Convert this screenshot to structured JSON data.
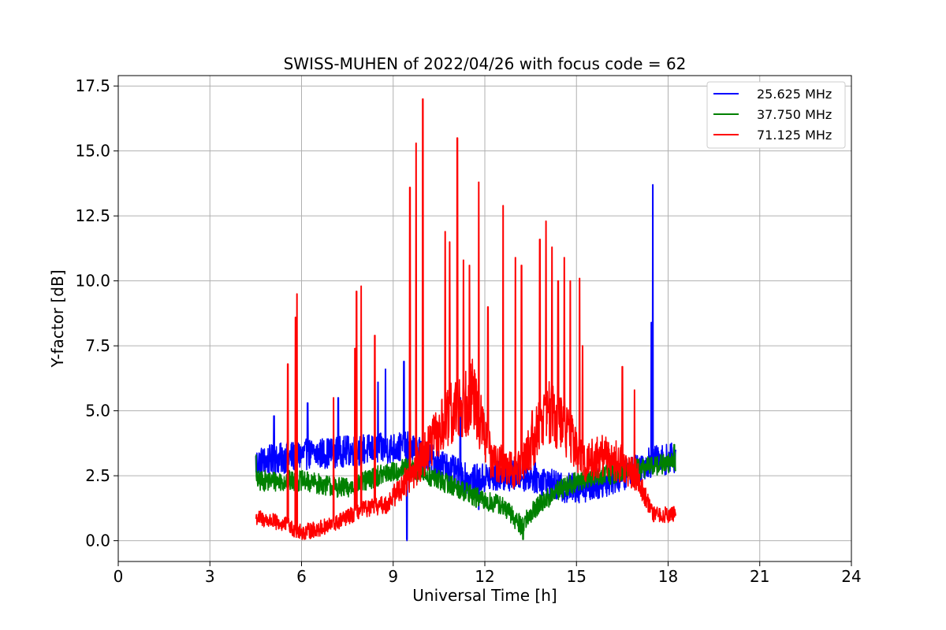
{
  "chart_data": {
    "type": "line",
    "title": "SWISS-MUHEN of 2022/04/26 with focus code = 62",
    "xlabel": "Universal Time [h]",
    "ylabel": "Y-factor [dB]",
    "xlim": [
      0,
      24
    ],
    "ylim": [
      -0.8,
      17.9
    ],
    "xticks": [
      0,
      3,
      6,
      9,
      12,
      15,
      18,
      21,
      24
    ],
    "xtick_labels": [
      "0",
      "3",
      "6",
      "9",
      "12",
      "15",
      "18",
      "21",
      "24"
    ],
    "yticks": [
      0,
      2.5,
      5,
      7.5,
      10,
      12.5,
      15,
      17.5
    ],
    "ytick_labels": [
      "0.0",
      "2.5",
      "5.0",
      "7.5",
      "10.0",
      "12.5",
      "15.0",
      "17.5"
    ],
    "grid": true,
    "legend_position": "top-right",
    "series": [
      {
        "name": "25.625 MHz",
        "color": "#0000ff",
        "x_start": 4.5,
        "x_end": 18.25,
        "baseline": [
          [
            4.5,
            3.0
          ],
          [
            6.0,
            3.3
          ],
          [
            8.0,
            3.5
          ],
          [
            9.5,
            3.6
          ],
          [
            10.5,
            3.0
          ],
          [
            11.5,
            2.3
          ],
          [
            12.5,
            2.5
          ],
          [
            13.5,
            2.5
          ],
          [
            14.5,
            2.0
          ],
          [
            15.5,
            2.1
          ],
          [
            16.5,
            2.5
          ],
          [
            17.3,
            3.0
          ],
          [
            18.25,
            3.2
          ]
        ],
        "noise": 0.6,
        "peaks": [
          [
            5.1,
            4.8
          ],
          [
            6.2,
            5.3
          ],
          [
            7.2,
            5.5
          ],
          [
            8.5,
            6.1
          ],
          [
            8.75,
            6.6
          ],
          [
            9.35,
            6.9
          ],
          [
            9.45,
            0.0
          ],
          [
            11.2,
            5.5
          ],
          [
            11.8,
            1.2
          ],
          [
            17.5,
            13.7
          ],
          [
            17.45,
            8.4
          ]
        ]
      },
      {
        "name": "37.750 MHz",
        "color": "#008000",
        "x_start": 4.5,
        "x_end": 18.25,
        "baseline": [
          [
            4.5,
            2.3
          ],
          [
            6.0,
            2.3
          ],
          [
            7.5,
            2.0
          ],
          [
            8.5,
            2.5
          ],
          [
            9.5,
            2.8
          ],
          [
            11.0,
            2.1
          ],
          [
            12.0,
            1.5
          ],
          [
            12.5,
            1.4
          ],
          [
            13.2,
            0.6
          ],
          [
            13.7,
            1.3
          ],
          [
            14.5,
            2.0
          ],
          [
            15.5,
            2.5
          ],
          [
            16.5,
            2.6
          ],
          [
            17.5,
            2.9
          ],
          [
            18.25,
            3.0
          ]
        ],
        "noise": 0.4,
        "peaks": [
          [
            13.25,
            0.05
          ],
          [
            4.5,
            3.3
          ],
          [
            18.2,
            3.7
          ]
        ]
      },
      {
        "name": "71.125 MHz",
        "color": "#ff0000",
        "x_start": 4.5,
        "x_end": 18.25,
        "baseline": [
          [
            4.5,
            0.9
          ],
          [
            5.5,
            0.6
          ],
          [
            6.0,
            0.3
          ],
          [
            7.0,
            0.6
          ],
          [
            8.0,
            1.2
          ],
          [
            8.8,
            1.4
          ],
          [
            9.2,
            2.0
          ],
          [
            9.6,
            2.5
          ],
          [
            10.5,
            4.2
          ],
          [
            11.0,
            5.0
          ],
          [
            11.6,
            5.6
          ],
          [
            12.2,
            3.2
          ],
          [
            13.0,
            2.6
          ],
          [
            13.5,
            3.6
          ],
          [
            14.0,
            5.0
          ],
          [
            14.6,
            4.5
          ],
          [
            15.2,
            3.0
          ],
          [
            16.0,
            3.3
          ],
          [
            17.0,
            2.5
          ],
          [
            17.5,
            1.0
          ],
          [
            18.25,
            1.0
          ]
        ],
        "noise": 0.9,
        "peaks": [
          [
            5.55,
            6.8
          ],
          [
            5.85,
            9.5
          ],
          [
            5.8,
            8.6
          ],
          [
            7.05,
            5.5
          ],
          [
            7.8,
            9.6
          ],
          [
            7.95,
            9.8
          ],
          [
            7.75,
            7.4
          ],
          [
            8.4,
            7.9
          ],
          [
            9.55,
            13.6
          ],
          [
            9.75,
            15.3
          ],
          [
            9.97,
            17.0
          ],
          [
            10.7,
            11.9
          ],
          [
            10.85,
            11.5
          ],
          [
            11.1,
            15.5
          ],
          [
            11.3,
            10.8
          ],
          [
            11.5,
            10.6
          ],
          [
            11.8,
            13.8
          ],
          [
            12.1,
            9.0
          ],
          [
            12.6,
            12.9
          ],
          [
            13.0,
            10.9
          ],
          [
            13.2,
            10.6
          ],
          [
            13.8,
            11.6
          ],
          [
            14.0,
            12.3
          ],
          [
            14.2,
            11.3
          ],
          [
            14.4,
            10.0
          ],
          [
            14.6,
            10.9
          ],
          [
            14.8,
            10.0
          ],
          [
            15.1,
            10.1
          ],
          [
            15.2,
            7.5
          ],
          [
            16.5,
            6.7
          ],
          [
            16.9,
            5.8
          ],
          [
            13.55,
            5.0
          ]
        ]
      }
    ]
  }
}
